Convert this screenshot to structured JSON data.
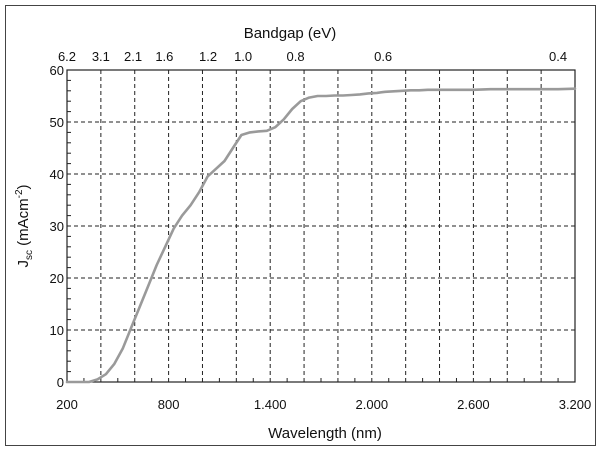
{
  "chart_data": {
    "type": "line",
    "xlabel": "Wavelength (nm)",
    "ylabel_main": "J",
    "ylabel_sub": "sc",
    "ylabel_rest": " (mAcm",
    "ylabel_sup": "-2",
    "ylabel_end": ")",
    "top_label": "Bandgap (eV)",
    "xlim": [
      200,
      3200
    ],
    "ylim": [
      0,
      60
    ],
    "x_ticks": [
      {
        "value": 200,
        "label": "200"
      },
      {
        "value": 800,
        "label": "800"
      },
      {
        "value": 1400,
        "label": "1.400"
      },
      {
        "value": 2000,
        "label": "2.000"
      },
      {
        "value": 2600,
        "label": "2.600"
      },
      {
        "value": 3200,
        "label": "3.200"
      }
    ],
    "y_ticks": [
      {
        "value": 0,
        "label": "0"
      },
      {
        "value": 10,
        "label": "10"
      },
      {
        "value": 20,
        "label": "20"
      },
      {
        "value": 30,
        "label": "30"
      },
      {
        "value": 40,
        "label": "40"
      },
      {
        "value": 50,
        "label": "50"
      },
      {
        "value": 60,
        "label": "60"
      }
    ],
    "top_ticks": [
      {
        "label": "6.2",
        "wavelength": 200
      },
      {
        "label": "3.1",
        "wavelength": 400
      },
      {
        "label": "2.1",
        "wavelength": 590
      },
      {
        "label": "1.6",
        "wavelength": 775
      },
      {
        "label": "1.2",
        "wavelength": 1033
      },
      {
        "label": "1.0",
        "wavelength": 1240
      },
      {
        "label": "0.8",
        "wavelength": 1550
      },
      {
        "label": "0.6",
        "wavelength": 2067
      },
      {
        "label": "0.4",
        "wavelength": 3100
      }
    ],
    "grid": true,
    "line_color": "#9a9a9a",
    "series": [
      {
        "x": [
          200,
          280,
          330,
          380,
          430,
          480,
          530,
          580,
          630,
          680,
          730,
          780,
          830,
          880,
          930,
          980,
          1030,
          1080,
          1130,
          1180,
          1230,
          1280,
          1330,
          1380,
          1430,
          1480,
          1530,
          1580,
          1630,
          1680,
          1730,
          1780,
          1830,
          1880,
          1930,
          1980,
          2030,
          2080,
          2130,
          2180,
          2230,
          2280,
          2330,
          2400,
          2500,
          2600,
          2700,
          2800,
          2900,
          3000,
          3100,
          3200
        ],
        "y": [
          0,
          0,
          0,
          0.5,
          1.5,
          3.5,
          6.5,
          10.5,
          14.5,
          18.5,
          22.5,
          26,
          29.5,
          32,
          34,
          36.5,
          39.5,
          41,
          42.5,
          45,
          47.5,
          48,
          48.2,
          48.3,
          49,
          50.5,
          52.5,
          54,
          54.7,
          55,
          55,
          55.1,
          55.1,
          55.2,
          55.3,
          55.5,
          55.6,
          55.8,
          55.9,
          56,
          56.1,
          56.1,
          56.2,
          56.2,
          56.2,
          56.2,
          56.3,
          56.3,
          56.3,
          56.3,
          56.3,
          56.4
        ]
      }
    ]
  }
}
